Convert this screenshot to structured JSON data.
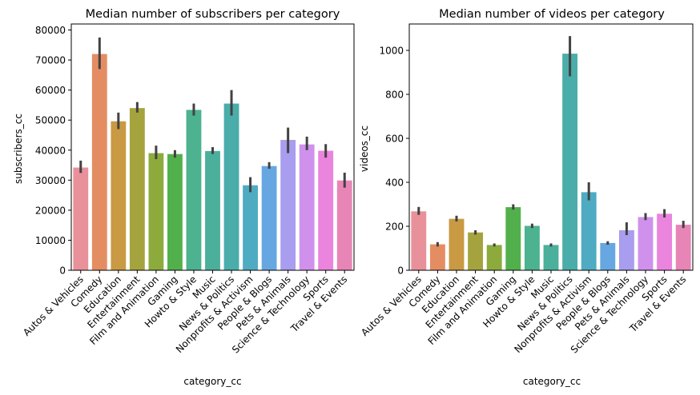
{
  "chart_data": [
    {
      "type": "bar",
      "title": "Median number of subscribers per category",
      "xlabel": "category_cc",
      "ylabel": "subscribers_cc",
      "ylim": [
        0,
        82000
      ],
      "yticks": [
        0,
        10000,
        20000,
        30000,
        40000,
        50000,
        60000,
        70000,
        80000
      ],
      "categories": [
        "Autos & Vehicles",
        "Comedy",
        "Education",
        "Entertainment",
        "Film and Animation",
        "Gaming",
        "Howto & Style",
        "Music",
        "News & Politics",
        "Nonprofits & Activism",
        "People & Blogs",
        "Pets & Animals",
        "Science & Technology",
        "Sports",
        "Travel & Events"
      ],
      "values": [
        34200,
        72000,
        49600,
        54000,
        39000,
        38700,
        53400,
        39700,
        55500,
        28300,
        34700,
        43400,
        41900,
        39800,
        29900
      ],
      "error_low": [
        32400,
        67000,
        47000,
        52500,
        37000,
        37500,
        51500,
        38700,
        51500,
        26000,
        33800,
        39000,
        40000,
        37500,
        27500
      ],
      "error_high": [
        36500,
        77500,
        52500,
        56000,
        41500,
        40000,
        55500,
        41000,
        60000,
        31000,
        36000,
        47500,
        44500,
        42000,
        32500
      ],
      "grid": false,
      "legend": "none"
    },
    {
      "type": "bar",
      "title": "Median number of videos per category",
      "xlabel": "category_cc",
      "ylabel": "videos_cc",
      "ylim": [
        0,
        1120
      ],
      "yticks": [
        0,
        200,
        400,
        600,
        800,
        1000
      ],
      "categories": [
        "Autos & Vehicles",
        "Comedy",
        "Education",
        "Entertainment",
        "Film and Animation",
        "Gaming",
        "Howto & Style",
        "Music",
        "News & Politics",
        "Nonprofits & Activism",
        "People & Blogs",
        "Pets & Animals",
        "Science & Technology",
        "Sports",
        "Travel & Events"
      ],
      "values": [
        268,
        118,
        234,
        172,
        115,
        287,
        202,
        115,
        985,
        355,
        124,
        182,
        242,
        257,
        207
      ],
      "error_low": [
        252,
        108,
        222,
        162,
        108,
        276,
        192,
        108,
        882,
        318,
        116,
        160,
        228,
        240,
        192
      ],
      "error_high": [
        288,
        128,
        248,
        182,
        122,
        300,
        212,
        122,
        1065,
        400,
        132,
        218,
        260,
        278,
        225
      ],
      "grid": false,
      "legend": "none"
    }
  ],
  "colors": [
    "#e8919b",
    "#e48d63",
    "#c99a43",
    "#a5a33d",
    "#8dab3d",
    "#52b04c",
    "#4db28f",
    "#4bb09b",
    "#4aadaa",
    "#4eabc1",
    "#66a7e1",
    "#a89dee",
    "#cf91ec",
    "#ea84dd",
    "#e786b6"
  ]
}
